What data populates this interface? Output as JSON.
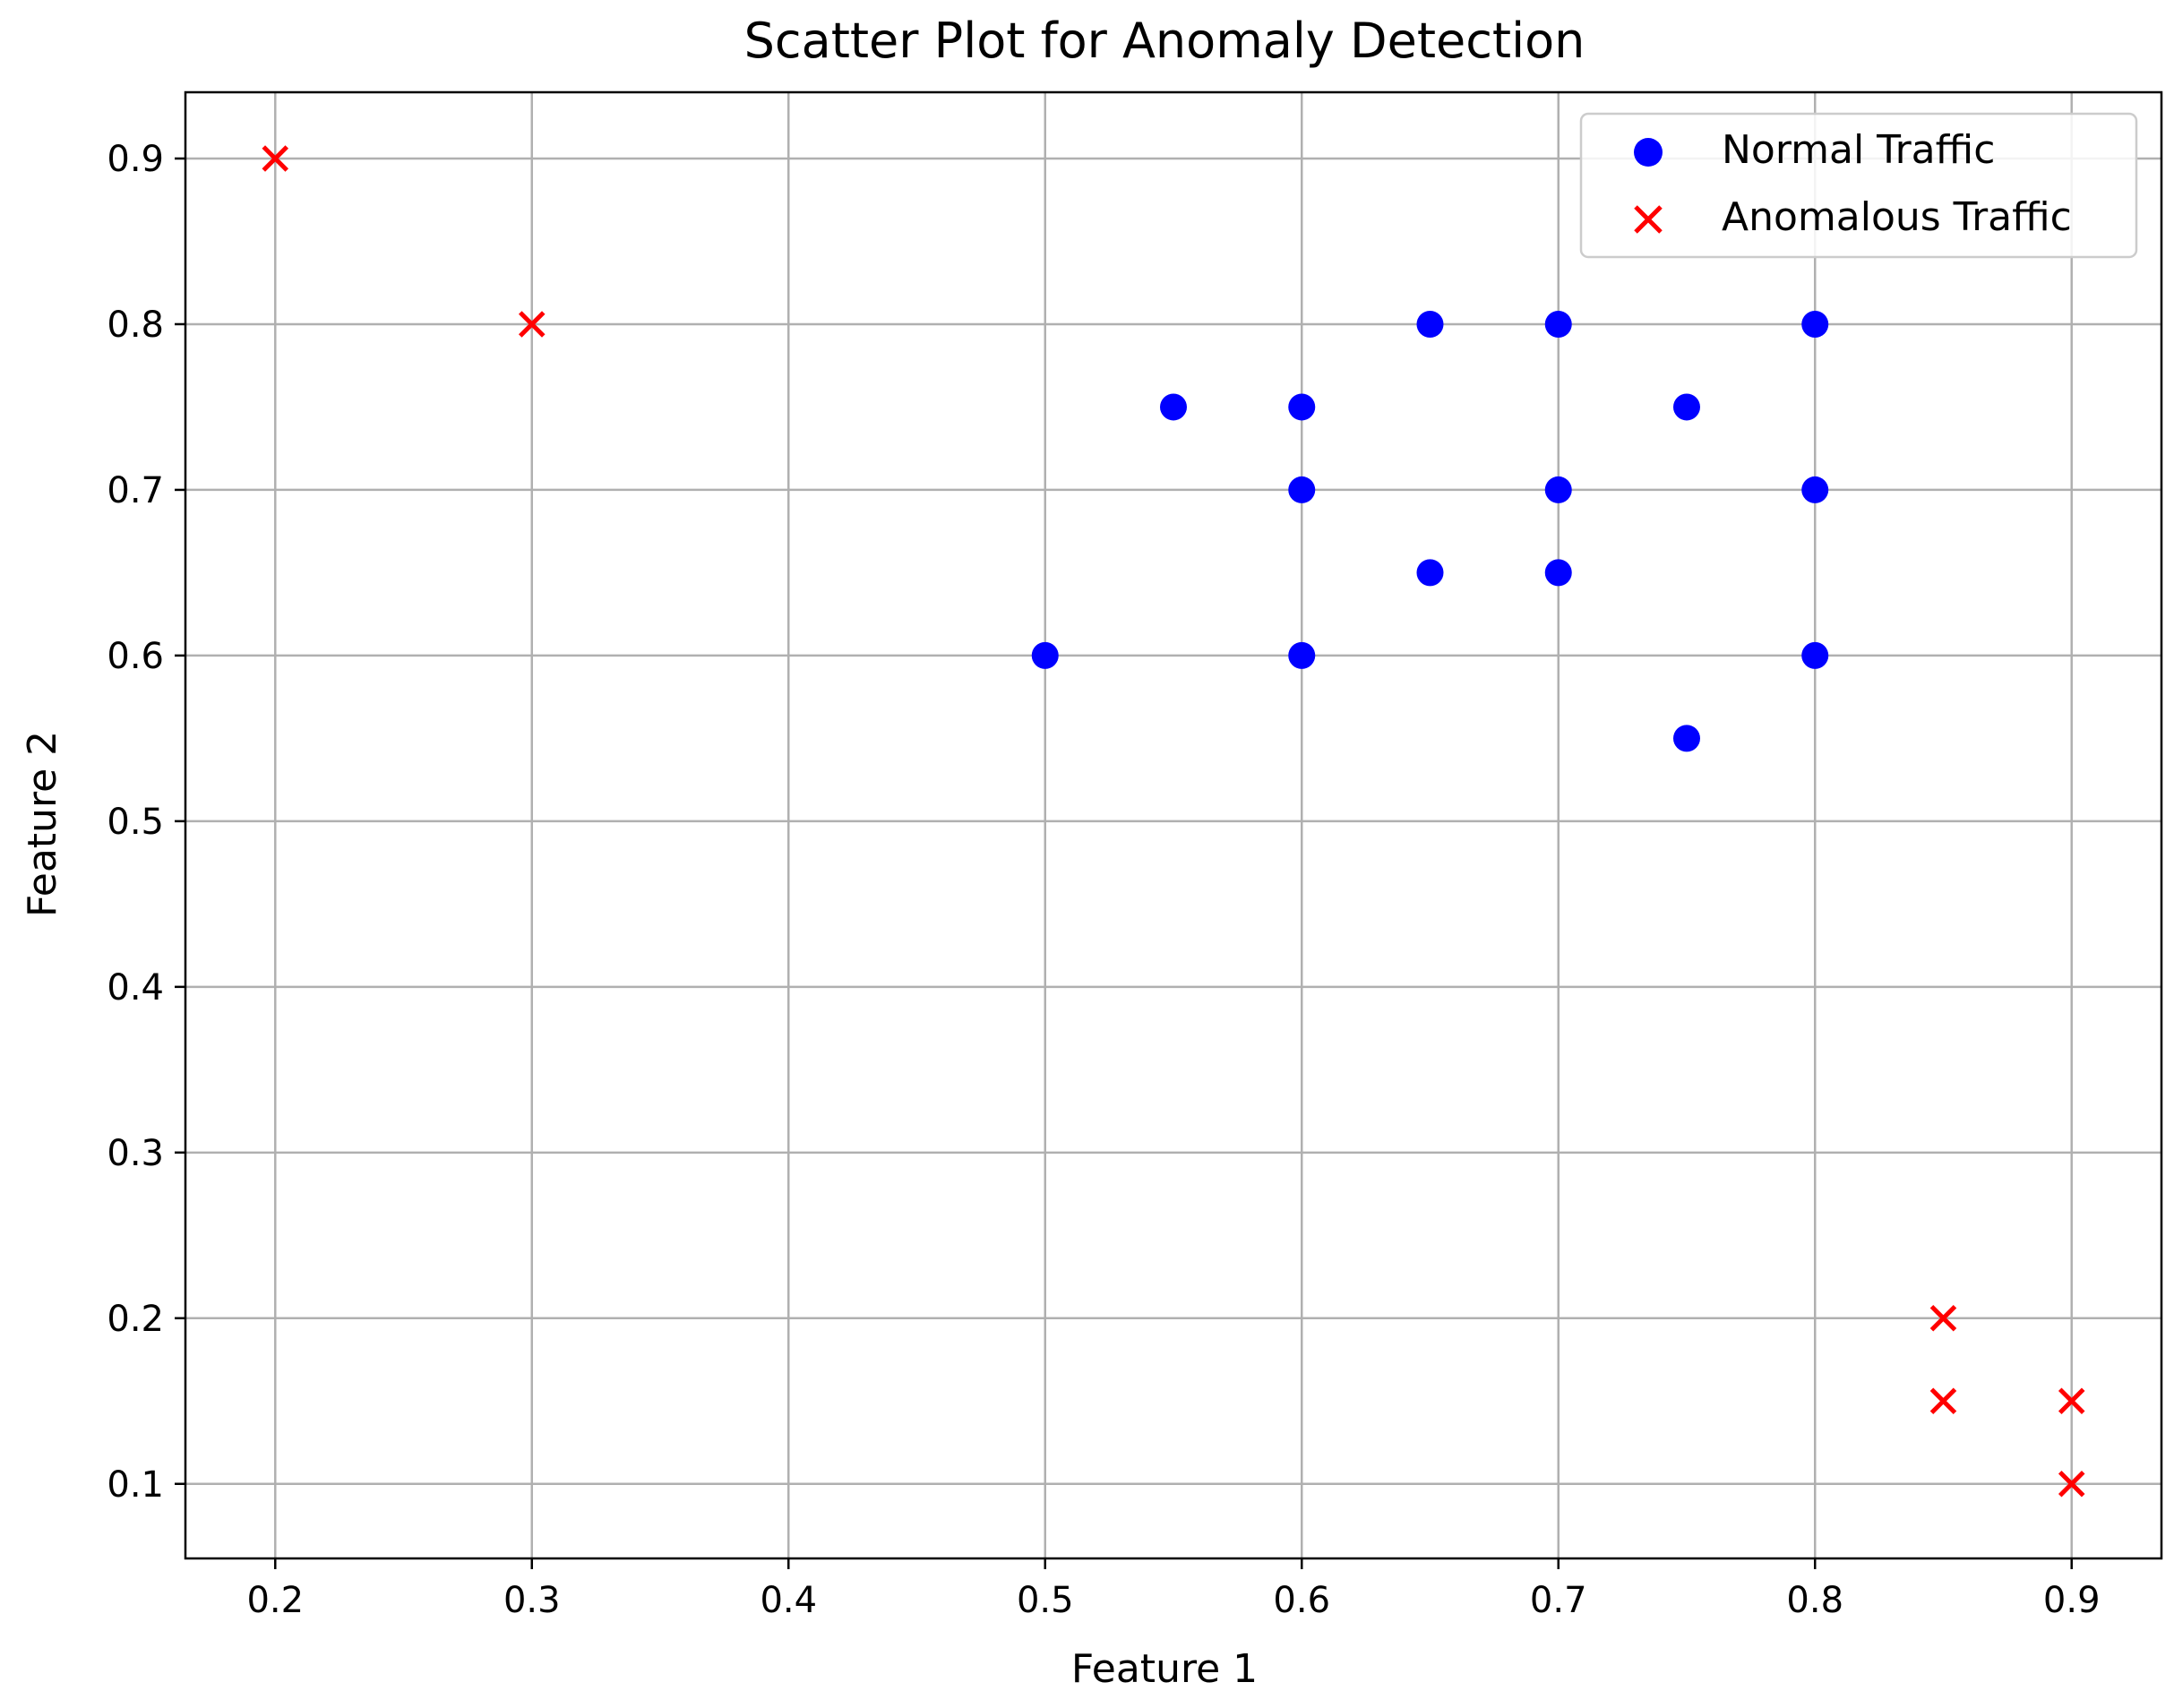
{
  "chart_data": {
    "type": "scatter",
    "title": "Scatter Plot for Anomaly Detection",
    "xlabel": "Feature 1",
    "ylabel": "Feature 2",
    "xlim": [
      0.165,
      0.935
    ],
    "ylim": [
      0.055,
      0.94
    ],
    "xticks": [
      0.2,
      0.3,
      0.4,
      0.5,
      0.6,
      0.7,
      0.8,
      0.9
    ],
    "xtick_labels": [
      "0.2",
      "0.3",
      "0.4",
      "0.5",
      "0.6",
      "0.7",
      "0.8",
      "0.9"
    ],
    "yticks": [
      0.1,
      0.2,
      0.3,
      0.4,
      0.5,
      0.6,
      0.7,
      0.8,
      0.9
    ],
    "ytick_labels": [
      "0.1",
      "0.2",
      "0.3",
      "0.4",
      "0.5",
      "0.6",
      "0.7",
      "0.8",
      "0.9"
    ],
    "grid": true,
    "legend_position": "top-right",
    "series": [
      {
        "name": "Normal Traffic",
        "marker": "circle",
        "color": "#0000ff",
        "x": [
          0.55,
          0.6,
          0.65,
          0.7,
          0.75,
          0.8,
          0.6,
          0.7,
          0.8,
          0.65,
          0.7,
          0.5,
          0.6,
          0.8,
          0.75
        ],
        "y": [
          0.75,
          0.75,
          0.8,
          0.8,
          0.75,
          0.8,
          0.7,
          0.7,
          0.7,
          0.65,
          0.65,
          0.6,
          0.6,
          0.6,
          0.55
        ]
      },
      {
        "name": "Anomalous Traffic",
        "marker": "x",
        "color": "#ff0000",
        "x": [
          0.2,
          0.3,
          0.85,
          0.85,
          0.9,
          0.9
        ],
        "y": [
          0.9,
          0.8,
          0.2,
          0.15,
          0.15,
          0.1
        ]
      }
    ]
  }
}
